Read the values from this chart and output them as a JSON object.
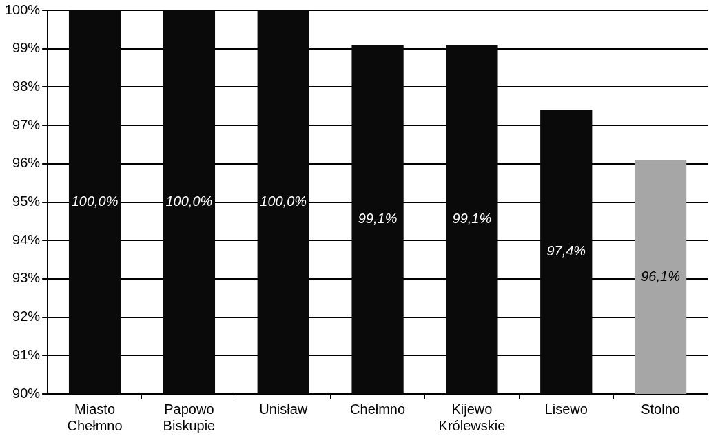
{
  "chart_data": {
    "type": "bar",
    "categories": [
      "Miasto Chełmno",
      "Papowo Biskupie",
      "Unisław",
      "Chełmno",
      "Kijewo Królewskie",
      "Lisewo",
      "Stolno"
    ],
    "values": [
      100,
      100,
      100,
      99.1,
      99.1,
      97.4,
      96.1
    ],
    "colors": [
      "#0a0a0a",
      "#0a0a0a",
      "#0a0a0a",
      "#0a0a0a",
      "#0a0a0a",
      "#0a0a0a",
      "#a6a6a6"
    ],
    "value_labels": [
      "100,0%",
      "100,0%",
      "100,0%",
      "99,1%",
      "99,1%",
      "97,4%",
      "96,1%"
    ],
    "ylim": [
      90,
      100
    ],
    "yticks": [
      {
        "value": 90,
        "label": "90%"
      },
      {
        "value": 91,
        "label": "91%"
      },
      {
        "value": 92,
        "label": "92%"
      },
      {
        "value": 93,
        "label": "93%"
      },
      {
        "value": 94,
        "label": "94%"
      },
      {
        "value": 95,
        "label": "95%"
      },
      {
        "value": 96,
        "label": "96%"
      },
      {
        "value": 97,
        "label": "97%"
      },
      {
        "value": 98,
        "label": "98%"
      },
      {
        "value": 99,
        "label": "99%"
      },
      {
        "value": 100,
        "label": "100%"
      }
    ],
    "grid": "y",
    "legend": false
  }
}
